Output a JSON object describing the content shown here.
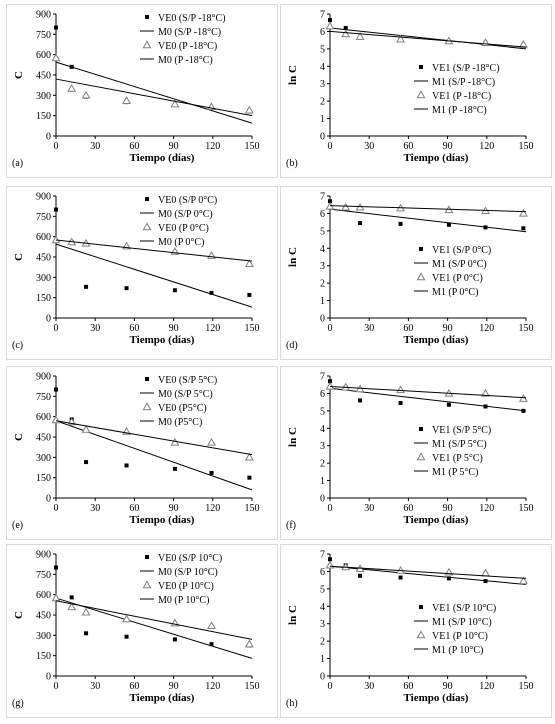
{
  "chart_data": [
    {
      "type": "scatter",
      "panel_label": "(a)",
      "xlabel": "Tiempo (días)",
      "ylabel": "C",
      "xlim": [
        0,
        150
      ],
      "ylim": [
        0,
        900
      ],
      "xticks": [
        0,
        30,
        60,
        90,
        120,
        150
      ],
      "yticks": [
        0,
        150,
        300,
        450,
        600,
        750,
        900
      ],
      "ytick_labels": [
        "0",
        "150",
        "300",
        "450",
        "600",
        "750",
        "900"
      ],
      "legend_position": "top-right",
      "series": [
        {
          "name": "VE0 (S/P -18°C)",
          "kind": "points",
          "marker": "square",
          "x": [
            0,
            12,
            23,
            54,
            91,
            119,
            148
          ],
          "y": [
            800,
            510,
            290,
            250,
            230,
            210,
            180
          ]
        },
        {
          "name": "M0 (S/P -18°C)",
          "kind": "line",
          "x": [
            0,
            150
          ],
          "y": [
            545,
            95
          ]
        },
        {
          "name": "VE0 (P -18°C)",
          "kind": "points",
          "marker": "triangle",
          "x": [
            0,
            12,
            23,
            54,
            91,
            119,
            148
          ],
          "y": [
            575,
            350,
            300,
            260,
            235,
            215,
            190
          ]
        },
        {
          "name": "M0 (P -18°C)",
          "kind": "line",
          "x": [
            0,
            150
          ],
          "y": [
            420,
            150
          ]
        }
      ]
    },
    {
      "type": "scatter",
      "panel_label": "(b)",
      "xlabel": "Tiempo (días)",
      "ylabel": "ln C",
      "xlim": [
        0,
        150
      ],
      "ylim": [
        0,
        7
      ],
      "xticks": [
        0,
        30,
        60,
        90,
        120,
        150
      ],
      "yticks": [
        0,
        1,
        2,
        3,
        4,
        5,
        6,
        7
      ],
      "ytick_labels": [
        "0",
        "1",
        "2",
        "3",
        "4",
        "5",
        "6",
        "7"
      ],
      "legend_position": "bottom-right",
      "series": [
        {
          "name": "VE1 (S/P -18°C)",
          "kind": "points",
          "marker": "square",
          "x": [
            0,
            12,
            23,
            54,
            91,
            119,
            148
          ],
          "y": [
            6.65,
            6.2,
            5.65,
            5.5,
            5.4,
            5.35,
            5.2
          ]
        },
        {
          "name": "M1 (S/P -18°C)",
          "kind": "line",
          "x": [
            0,
            150
          ],
          "y": [
            6.2,
            5.0
          ]
        },
        {
          "name": "VE1 (P -18°C)",
          "kind": "points",
          "marker": "triangle",
          "x": [
            0,
            12,
            23,
            54,
            91,
            119,
            148
          ],
          "y": [
            6.3,
            5.85,
            5.7,
            5.55,
            5.45,
            5.35,
            5.25
          ]
        },
        {
          "name": "M1 (P -18°C)",
          "kind": "line",
          "x": [
            0,
            150
          ],
          "y": [
            6.0,
            5.1
          ]
        }
      ]
    },
    {
      "type": "scatter",
      "panel_label": "(c)",
      "xlabel": "Tiempo (días)",
      "ylabel": "C",
      "xlim": [
        0,
        150
      ],
      "ylim": [
        0,
        900
      ],
      "xticks": [
        0,
        30,
        60,
        90,
        120,
        150
      ],
      "yticks": [
        0,
        150,
        300,
        450,
        600,
        750,
        900
      ],
      "ytick_labels": [
        "0",
        "150",
        "300",
        "450",
        "600",
        "750",
        "900"
      ],
      "legend_position": "top-right",
      "series": [
        {
          "name": "VE0 (S/P 0°C)",
          "kind": "points",
          "marker": "square",
          "x": [
            0,
            12,
            23,
            54,
            91,
            119,
            148
          ],
          "y": [
            800,
            560,
            230,
            220,
            205,
            185,
            170
          ]
        },
        {
          "name": "M0 (S/P 0°C)",
          "kind": "line",
          "x": [
            0,
            150
          ],
          "y": [
            545,
            80
          ]
        },
        {
          "name": "VE0 (P 0°C)",
          "kind": "points",
          "marker": "triangle",
          "x": [
            0,
            12,
            23,
            54,
            91,
            119,
            148
          ],
          "y": [
            575,
            560,
            550,
            530,
            490,
            460,
            400
          ]
        },
        {
          "name": "M0 (P 0°C)",
          "kind": "line",
          "x": [
            0,
            150
          ],
          "y": [
            575,
            420
          ]
        }
      ]
    },
    {
      "type": "scatter",
      "panel_label": "(d)",
      "xlabel": "Tiempo (días)",
      "ylabel": "ln C",
      "xlim": [
        0,
        150
      ],
      "ylim": [
        0,
        7
      ],
      "xticks": [
        0,
        30,
        60,
        90,
        120,
        150
      ],
      "yticks": [
        0,
        1,
        2,
        3,
        4,
        5,
        6,
        7
      ],
      "ytick_labels": [
        "0",
        "1",
        "2",
        "3",
        "4",
        "5",
        "6",
        "7"
      ],
      "legend_position": "bottom-right",
      "series": [
        {
          "name": "VE1 (S/P 0°C)",
          "kind": "points",
          "marker": "square",
          "x": [
            0,
            12,
            23,
            54,
            91,
            119,
            148
          ],
          "y": [
            6.7,
            6.3,
            5.45,
            5.4,
            5.35,
            5.2,
            5.15
          ]
        },
        {
          "name": "M1 (S/P 0°C)",
          "kind": "line",
          "x": [
            0,
            150
          ],
          "y": [
            6.25,
            4.95
          ]
        },
        {
          "name": "VE1 (P 0°C)",
          "kind": "points",
          "marker": "triangle",
          "x": [
            0,
            12,
            23,
            54,
            91,
            119,
            148
          ],
          "y": [
            6.4,
            6.35,
            6.35,
            6.3,
            6.2,
            6.15,
            6.0
          ]
        },
        {
          "name": "M1 (P 0°C)",
          "kind": "line",
          "x": [
            0,
            150
          ],
          "y": [
            6.45,
            6.1
          ]
        }
      ]
    },
    {
      "type": "scatter",
      "panel_label": "(e)",
      "xlabel": "Tiempo (días)",
      "ylabel": "C",
      "xlim": [
        0,
        150
      ],
      "ylim": [
        0,
        900
      ],
      "xticks": [
        0,
        30,
        60,
        90,
        120,
        150
      ],
      "yticks": [
        0,
        150,
        300,
        450,
        600,
        750,
        900
      ],
      "ytick_labels": [
        "0",
        "150",
        "300",
        "450",
        "600",
        "750",
        "900"
      ],
      "legend_position": "top-right",
      "series": [
        {
          "name": "VE0 (S/P 5°C)",
          "kind": "points",
          "marker": "square",
          "x": [
            0,
            12,
            23,
            54,
            91,
            119,
            148
          ],
          "y": [
            800,
            580,
            265,
            240,
            215,
            185,
            150
          ]
        },
        {
          "name": "M0 (S/P 5°C)",
          "kind": "line",
          "x": [
            0,
            150
          ],
          "y": [
            570,
            60
          ]
        },
        {
          "name": "VE0 (P5°C)",
          "kind": "points",
          "marker": "triangle",
          "x": [
            0,
            12,
            23,
            54,
            91,
            119,
            148
          ],
          "y": [
            575,
            560,
            505,
            490,
            410,
            410,
            300
          ]
        },
        {
          "name": "M0 (P5°C)",
          "kind": "line",
          "x": [
            0,
            150
          ],
          "y": [
            570,
            320
          ]
        }
      ]
    },
    {
      "type": "scatter",
      "panel_label": "(f)",
      "xlabel": "Tiempo (días)",
      "ylabel": "ln C",
      "xlim": [
        0,
        150
      ],
      "ylim": [
        0,
        7
      ],
      "xticks": [
        0,
        30,
        60,
        90,
        120,
        150
      ],
      "yticks": [
        0,
        1,
        2,
        3,
        4,
        5,
        6,
        7
      ],
      "ytick_labels": [
        "0",
        "1",
        "2",
        "3",
        "4",
        "5",
        "6",
        "7"
      ],
      "legend_position": "bottom-right",
      "series": [
        {
          "name": "VE1 (S/P 5°C)",
          "kind": "points",
          "marker": "square",
          "x": [
            0,
            12,
            23,
            54,
            91,
            119,
            148
          ],
          "y": [
            6.7,
            6.35,
            5.6,
            5.45,
            5.35,
            5.25,
            5.0
          ]
        },
        {
          "name": "M1 (S/P 5°C)",
          "kind": "line",
          "x": [
            0,
            150
          ],
          "y": [
            6.3,
            5.0
          ]
        },
        {
          "name": "VE1 (P 5°C)",
          "kind": "points",
          "marker": "triangle",
          "x": [
            0,
            12,
            23,
            54,
            91,
            119,
            148
          ],
          "y": [
            6.4,
            6.35,
            6.25,
            6.2,
            6.0,
            6.0,
            5.7
          ]
        },
        {
          "name": "M1 (P 5°C)",
          "kind": "line",
          "x": [
            0,
            150
          ],
          "y": [
            6.4,
            5.75
          ]
        }
      ]
    },
    {
      "type": "scatter",
      "panel_label": "(g)",
      "xlabel": "Tiempo (días)",
      "ylabel": "C",
      "xlim": [
        0,
        150
      ],
      "ylim": [
        0,
        900
      ],
      "xticks": [
        0,
        30,
        60,
        90,
        120,
        150
      ],
      "yticks": [
        0,
        150,
        300,
        450,
        600,
        750,
        900
      ],
      "ytick_labels": [
        "0",
        "150",
        "300",
        "450",
        "600",
        "750",
        "900"
      ],
      "legend_position": "top-right",
      "series": [
        {
          "name": "VE0 (S/P 10°C)",
          "kind": "points",
          "marker": "square",
          "x": [
            0,
            12,
            23,
            54,
            91,
            119,
            148
          ],
          "y": [
            800,
            580,
            315,
            290,
            270,
            235,
            225
          ]
        },
        {
          "name": "M0 (S/P 10°C)",
          "kind": "line",
          "x": [
            0,
            150
          ],
          "y": [
            575,
            130
          ]
        },
        {
          "name": "VE0 (P 10°C)",
          "kind": "points",
          "marker": "triangle",
          "x": [
            0,
            12,
            23,
            54,
            91,
            119,
            148
          ],
          "y": [
            575,
            510,
            470,
            420,
            390,
            370,
            235
          ]
        },
        {
          "name": "M0 (P 10°C)",
          "kind": "line",
          "x": [
            0,
            150
          ],
          "y": [
            555,
            270
          ]
        }
      ]
    },
    {
      "type": "scatter",
      "panel_label": "(h)",
      "xlabel": "Tiempo (días)",
      "ylabel": "ln C",
      "xlim": [
        0,
        150
      ],
      "ylim": [
        0,
        7
      ],
      "xticks": [
        0,
        30,
        60,
        90,
        120,
        150
      ],
      "yticks": [
        0,
        1,
        2,
        3,
        4,
        5,
        6,
        7
      ],
      "ytick_labels": [
        "0",
        "1",
        "2",
        "3",
        "4",
        "5",
        "6",
        "7"
      ],
      "legend_position": "bottom-right",
      "series": [
        {
          "name": "VE1 (S/P 10°C)",
          "kind": "points",
          "marker": "square",
          "x": [
            0,
            12,
            23,
            54,
            91,
            119,
            148
          ],
          "y": [
            6.7,
            6.35,
            5.75,
            5.65,
            5.6,
            5.45,
            5.4
          ]
        },
        {
          "name": "M1 (S/P 10°C)",
          "kind": "line",
          "x": [
            0,
            150
          ],
          "y": [
            6.3,
            5.25
          ]
        },
        {
          "name": "VE1 (P 10°C)",
          "kind": "points",
          "marker": "triangle",
          "x": [
            0,
            12,
            23,
            54,
            91,
            119,
            148
          ],
          "y": [
            6.35,
            6.25,
            6.15,
            6.05,
            5.95,
            5.9,
            5.45
          ]
        },
        {
          "name": "M1 (P 10°C)",
          "kind": "line",
          "x": [
            0,
            150
          ],
          "y": [
            6.3,
            5.6
          ]
        }
      ]
    }
  ]
}
